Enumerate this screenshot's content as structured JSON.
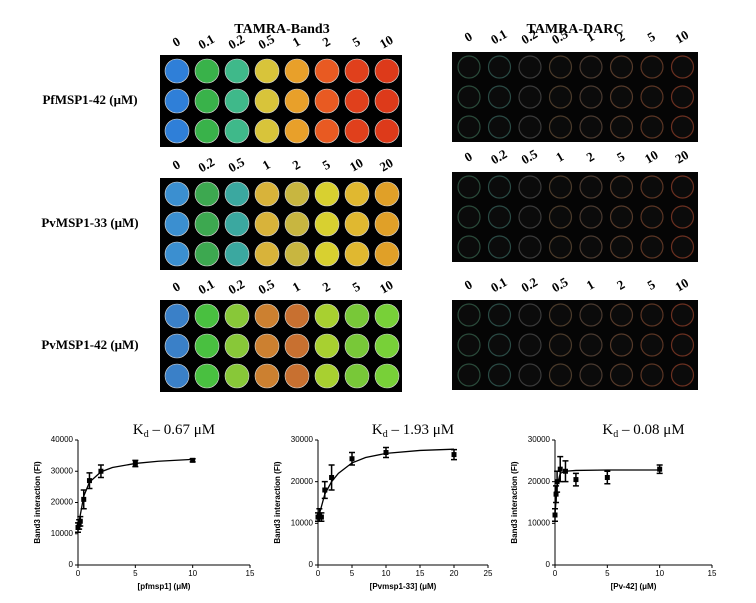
{
  "plates": {
    "band3_title": "TAMRA-Band3",
    "darc_title": "TAMRA-DARC",
    "rows": [
      {
        "label": "PfMSP1-42 (μM)",
        "concentrations": [
          0,
          0.1,
          0.2,
          0.5,
          1,
          2,
          5,
          10
        ]
      },
      {
        "label": "PvMSP1-33 (μM)",
        "concentrations": [
          0,
          0.2,
          0.5,
          1,
          2,
          5,
          10,
          20
        ]
      },
      {
        "label": "PvMSP1-42 (μM)",
        "concentrations": [
          0,
          0.1,
          0.2,
          0.5,
          1,
          2,
          5,
          10
        ]
      }
    ]
  },
  "chart_data": [
    {
      "type": "scatter",
      "title_main": "K",
      "title_sub": "d",
      "title_rest": " – 0.67 μM",
      "xlabel": "[pfmsp1] (μM)",
      "ylabel": "Band3 interaction (FI)",
      "xlim": [
        0,
        15
      ],
      "xticks": [
        0,
        5,
        10,
        15
      ],
      "ylim": [
        0,
        40000
      ],
      "yticks": [
        0,
        10000,
        20000,
        30000,
        40000
      ],
      "x": [
        0,
        0.1,
        0.2,
        0.5,
        1,
        2,
        5,
        10
      ],
      "values": [
        12000,
        13000,
        14000,
        21000,
        27000,
        30000,
        32500,
        33500
      ],
      "errors": [
        1500,
        1500,
        1500,
        3000,
        2500,
        2000,
        1000,
        500
      ],
      "fit": {
        "x": [
          0,
          0.5,
          1,
          2,
          3,
          5,
          7,
          10
        ],
        "values": [
          12000,
          22000,
          26500,
          29800,
          31200,
          32500,
          33200,
          33800
        ]
      }
    },
    {
      "type": "scatter",
      "title_main": "K",
      "title_sub": "d",
      "title_rest": " – 1.93 μM",
      "xlabel": "[Pvmsp1-33] (μM)",
      "ylabel": "Band3 interaction (FI)",
      "xlim": [
        0,
        25
      ],
      "xticks": [
        0,
        5,
        10,
        15,
        20,
        25
      ],
      "ylim": [
        0,
        30000
      ],
      "yticks": [
        0,
        10000,
        20000,
        30000
      ],
      "x": [
        0,
        0.2,
        0.5,
        1,
        2,
        5,
        10,
        20
      ],
      "values": [
        11500,
        12000,
        11500,
        18000,
        21000,
        25500,
        27000,
        26500
      ],
      "errors": [
        1000,
        1500,
        1000,
        2000,
        3000,
        1500,
        1200,
        1200
      ],
      "fit": {
        "x": [
          0,
          1,
          2,
          3,
          5,
          7,
          10,
          15,
          20
        ],
        "values": [
          11000,
          17000,
          20000,
          22000,
          24500,
          25800,
          26800,
          27500,
          27800
        ]
      }
    },
    {
      "type": "scatter",
      "title_main": "K",
      "title_sub": "d",
      "title_rest": " – 0.08 μM",
      "xlabel": "[Pv-42] (μM)",
      "ylabel": "Band3 interaction (FI)",
      "xlim": [
        0,
        15
      ],
      "xticks": [
        0,
        5,
        10,
        15
      ],
      "ylim": [
        0,
        30000
      ],
      "yticks": [
        0,
        10000,
        20000,
        30000
      ],
      "x": [
        0,
        0.1,
        0.2,
        0.5,
        1,
        2,
        5,
        10
      ],
      "values": [
        12000,
        17000,
        20000,
        23000,
        22500,
        20500,
        21000,
        23000
      ],
      "errors": [
        1500,
        2000,
        2500,
        3000,
        2500,
        1500,
        1500,
        1000
      ],
      "fit": {
        "x": [
          0,
          0.2,
          0.5,
          1,
          2,
          5,
          10
        ],
        "values": [
          12000,
          19000,
          22000,
          22500,
          22700,
          22800,
          22800
        ]
      }
    }
  ]
}
